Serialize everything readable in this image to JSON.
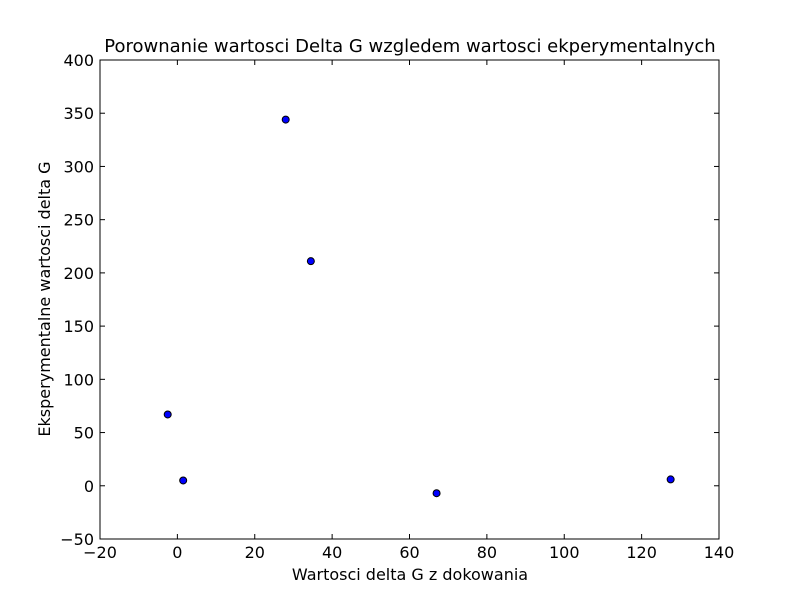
{
  "chart_data": {
    "type": "scatter",
    "title": "Porownanie wartosci Delta G wzgledem wartosci ekperymentalnych",
    "xlabel": "Wartosci delta G z dokowania",
    "ylabel": "Eksperymentalne wartosci delta G",
    "xlim": [
      -20,
      140
    ],
    "ylim": [
      -50,
      400
    ],
    "xticks": [
      -20,
      0,
      20,
      40,
      60,
      80,
      100,
      120,
      140
    ],
    "yticks": [
      -50,
      0,
      50,
      100,
      150,
      200,
      250,
      300,
      350,
      400
    ],
    "grid": false,
    "legend": "none",
    "marker_color": "#0000ff",
    "marker_edge_color": "#000000",
    "points": [
      {
        "x": 28,
        "y": 344
      },
      {
        "x": 34.5,
        "y": 211
      },
      {
        "x": -2.5,
        "y": 67
      },
      {
        "x": 1.5,
        "y": 5
      },
      {
        "x": 67,
        "y": -7
      },
      {
        "x": 127.5,
        "y": 6
      }
    ]
  }
}
